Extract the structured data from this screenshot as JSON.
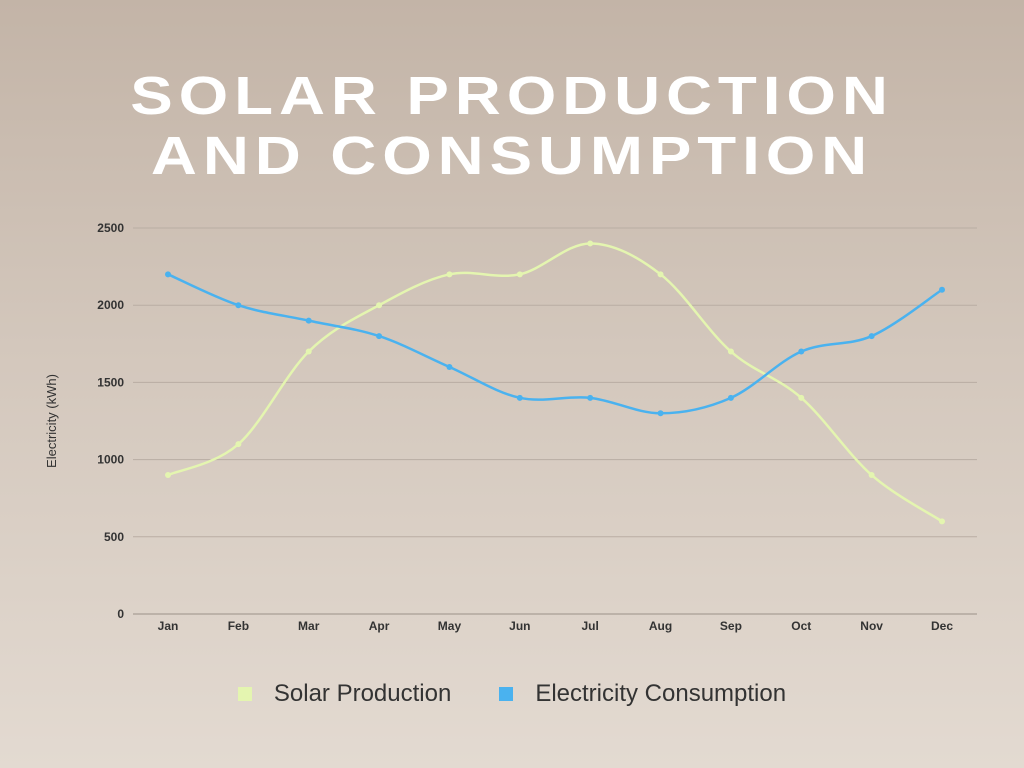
{
  "chart_data": {
    "type": "line",
    "title_lines": [
      "SOLAR PRODUCTION",
      "AND CONSUMPTION"
    ],
    "xlabel": "",
    "ylabel": "Electricity (kWh)",
    "categories": [
      "Jan",
      "Feb",
      "Mar",
      "Apr",
      "May",
      "Jun",
      "Jul",
      "Aug",
      "Sep",
      "Oct",
      "Nov",
      "Dec"
    ],
    "ylim": [
      0,
      2500
    ],
    "yticks": [
      0,
      500,
      1000,
      1500,
      2000,
      2500
    ],
    "grid": true,
    "legend_position": "bottom",
    "smooth": true,
    "series": [
      {
        "name": "Solar Production",
        "color": "#e4f5b0",
        "values": [
          900,
          1100,
          1700,
          2000,
          2200,
          2200,
          2400,
          2200,
          1700,
          1400,
          900,
          600
        ]
      },
      {
        "name": "Electricity Consumption",
        "color": "#4ab2ef",
        "values": [
          2200,
          2000,
          1900,
          1800,
          1600,
          1400,
          1400,
          1300,
          1400,
          1700,
          1800,
          2100
        ]
      }
    ]
  }
}
